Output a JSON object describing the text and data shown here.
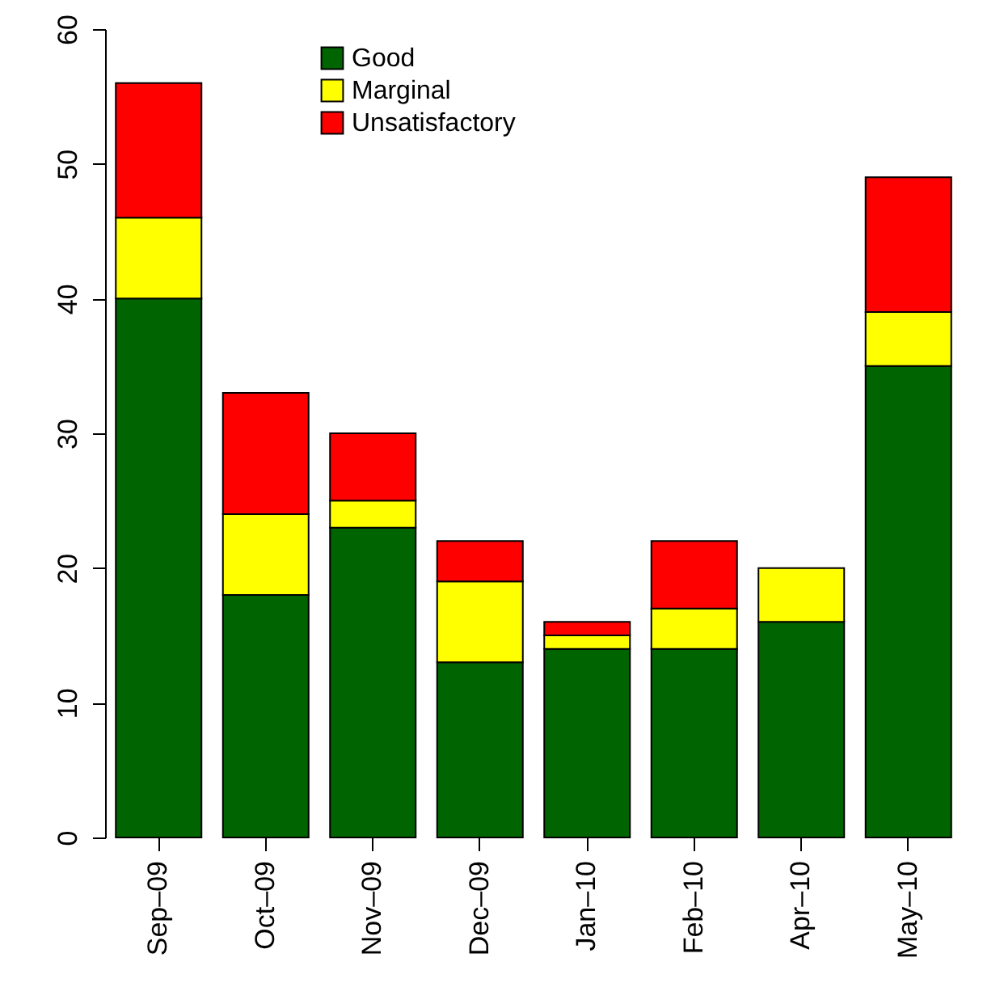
{
  "chart_data": {
    "type": "bar",
    "stacked": true,
    "categories": [
      "Sep–09",
      "Oct–09",
      "Nov–09",
      "Dec–09",
      "Jan–10",
      "Feb–10",
      "Apr–10",
      "May–10"
    ],
    "series": [
      {
        "name": "Good",
        "color": "#006400",
        "values": [
          40,
          18,
          23,
          13,
          14,
          14,
          16,
          35
        ]
      },
      {
        "name": "Marginal",
        "color": "#ffff00",
        "values": [
          6,
          6,
          2,
          6,
          1,
          3,
          4,
          4
        ]
      },
      {
        "name": "Unsatisfactory",
        "color": "#ff0000",
        "values": [
          10,
          9,
          5,
          3,
          1,
          5,
          0,
          10
        ]
      }
    ],
    "ylim": [
      0,
      60
    ],
    "yticks": [
      0,
      10,
      20,
      30,
      40,
      50,
      60
    ],
    "legend": "top",
    "grid": false
  }
}
